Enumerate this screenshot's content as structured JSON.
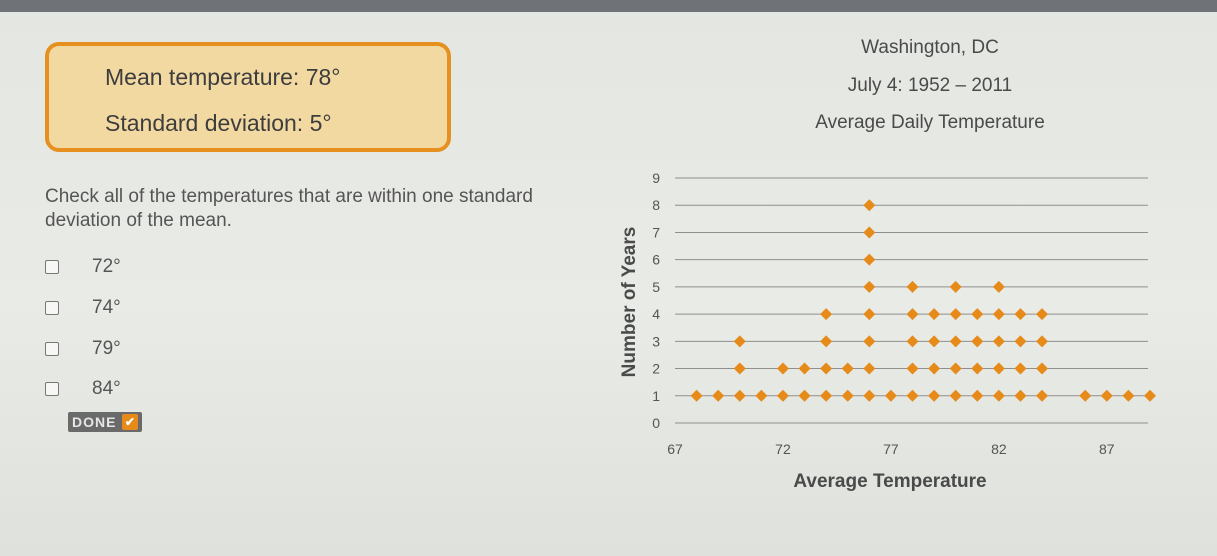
{
  "stats": {
    "mean_label": "Mean temperature:",
    "mean_value": "78°",
    "sd_label": "Standard deviation:",
    "sd_value": "5°"
  },
  "question": {
    "prompt": "Check all of the temperatures that are within one standard deviation of the mean.",
    "options": [
      {
        "label": "72°",
        "checked": false
      },
      {
        "label": "74°",
        "checked": false
      },
      {
        "label": "79°",
        "checked": false
      },
      {
        "label": "84°",
        "checked": false
      }
    ],
    "done_label": "DONE",
    "done_icon": "checkmark-icon"
  },
  "colors": {
    "accent": "#e5901f",
    "dot": "#e68a1a",
    "box_fill": "#f2d9a2",
    "grid": "#8f8f8f"
  },
  "chart_data": {
    "type": "dot-plot",
    "title_lines": [
      "Washington, DC",
      "July 4: 1952 – 2011",
      "Average Daily Temperature"
    ],
    "xlabel": "Average Temperature",
    "ylabel": "Number of Years",
    "xlim": [
      67,
      89
    ],
    "ylim": [
      0,
      9
    ],
    "x_ticks": [
      67,
      72,
      77,
      82,
      87
    ],
    "y_ticks": [
      0,
      1,
      2,
      3,
      4,
      5,
      6,
      7,
      8,
      9
    ],
    "grid": true,
    "points": [
      {
        "x": 68,
        "count": 1
      },
      {
        "x": 69,
        "count": 1
      },
      {
        "x": 70,
        "count": 3
      },
      {
        "x": 71,
        "count": 1
      },
      {
        "x": 72,
        "count": 2
      },
      {
        "x": 73,
        "count": 2
      },
      {
        "x": 74,
        "count": 4
      },
      {
        "x": 75,
        "count": 2
      },
      {
        "x": 76,
        "count": 8
      },
      {
        "x": 77,
        "count": 1
      },
      {
        "x": 78,
        "count": 5
      },
      {
        "x": 79,
        "count": 4
      },
      {
        "x": 80,
        "count": 5
      },
      {
        "x": 81,
        "count": 4
      },
      {
        "x": 82,
        "count": 5
      },
      {
        "x": 83,
        "count": 4
      },
      {
        "x": 84,
        "count": 4
      },
      {
        "x": 86,
        "count": 1
      },
      {
        "x": 87,
        "count": 1
      },
      {
        "x": 88,
        "count": 1
      },
      {
        "x": 89,
        "count": 1
      }
    ]
  }
}
